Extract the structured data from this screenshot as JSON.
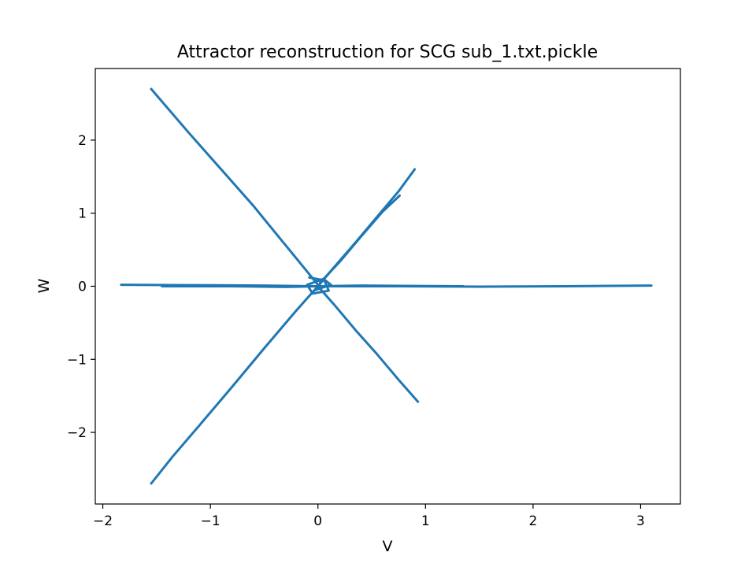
{
  "chart_data": {
    "type": "line",
    "title": "Attractor reconstruction for SCG sub_1.txt.pickle",
    "xlabel": "V",
    "ylabel": "W",
    "xlim": [
      -2.07,
      3.37
    ],
    "ylim": [
      -2.98,
      2.98
    ],
    "xticks": [
      -2,
      -1,
      0,
      1,
      2,
      3
    ],
    "yticks": [
      -2,
      -1,
      0,
      1,
      2
    ],
    "xtick_labels": [
      "−2",
      "−1",
      "0",
      "1",
      "2",
      "3"
    ],
    "ytick_labels": [
      "−2",
      "−1",
      "0",
      "1",
      "2"
    ],
    "grid": false,
    "line_color": "#1f77b4",
    "series": [
      {
        "x": [
          -1.55,
          -1.2,
          -0.9,
          -0.6,
          -0.35,
          -0.2,
          -0.1,
          0.0
        ],
        "y": [
          2.7,
          2.1,
          1.6,
          1.1,
          0.65,
          0.38,
          0.2,
          0.02
        ]
      },
      {
        "x": [
          0.0,
          0.15,
          0.35,
          0.55,
          0.75,
          0.9
        ],
        "y": [
          0.0,
          0.26,
          0.6,
          0.95,
          1.3,
          1.6
        ]
      },
      {
        "x": [
          0.02,
          0.2,
          0.4,
          0.6,
          0.76
        ],
        "y": [
          0.05,
          0.33,
          0.68,
          1.02,
          1.24
        ]
      },
      {
        "x": [
          0.0,
          0.15,
          0.35,
          0.55,
          0.75,
          0.93
        ],
        "y": [
          0.0,
          -0.25,
          -0.6,
          -0.93,
          -1.28,
          -1.58
        ]
      },
      {
        "x": [
          0.0,
          -0.2,
          -0.5,
          -0.8,
          -1.1,
          -1.35,
          -1.55
        ],
        "y": [
          0.0,
          -0.33,
          -0.85,
          -1.38,
          -1.9,
          -2.33,
          -2.7
        ]
      },
      {
        "x": [
          -1.83,
          -1.2,
          -0.5,
          0.0,
          0.7,
          1.5,
          2.3,
          3.1
        ],
        "y": [
          0.02,
          0.015,
          0.01,
          0.0,
          0.0,
          -0.005,
          0.0,
          0.01
        ]
      },
      {
        "x": [
          -1.45,
          -0.8,
          -0.3,
          0.0,
          0.4,
          1.35
        ],
        "y": [
          0.0,
          0.0,
          -0.01,
          0.0,
          0.01,
          0.0
        ]
      },
      {
        "x": [
          -0.08,
          0.06,
          0.1,
          -0.05,
          -0.1,
          0.05,
          0.12,
          -0.02
        ],
        "y": [
          0.12,
          0.08,
          -0.06,
          -0.1,
          0.02,
          0.1,
          0.02,
          -0.05
        ]
      }
    ]
  }
}
